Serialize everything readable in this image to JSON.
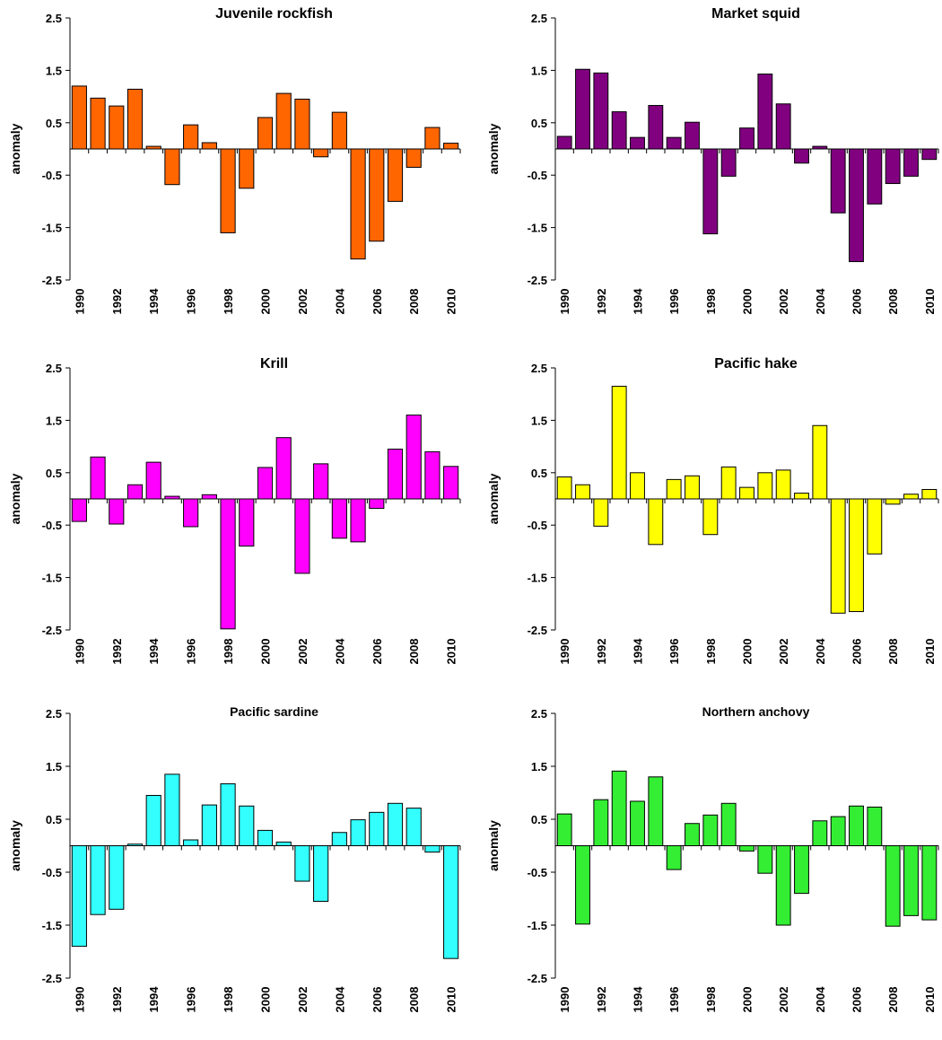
{
  "chart_data": [
    {
      "type": "bar",
      "title": "Juvenile rockfish",
      "ylabel": "anomaly",
      "xlabel": "",
      "ylim": [
        -2.5,
        2.5
      ],
      "yticks": [
        "2.5",
        "1.5",
        "0.5",
        "-0.5",
        "-1.5",
        "-2.5"
      ],
      "categories": [
        "1990",
        "1991",
        "1992",
        "1993",
        "1994",
        "1995",
        "1996",
        "1997",
        "1998",
        "1999",
        "2000",
        "2001",
        "2002",
        "2003",
        "2004",
        "2005",
        "2006",
        "2007",
        "2008",
        "2009",
        "2010"
      ],
      "xtick_labels": [
        "1990",
        "1992",
        "1994",
        "1996",
        "1998",
        "2000",
        "2002",
        "2004",
        "2006",
        "2008",
        "2010"
      ],
      "values": [
        1.2,
        0.97,
        0.82,
        1.14,
        0.05,
        -0.68,
        0.46,
        0.12,
        -1.6,
        -0.75,
        0.6,
        1.06,
        0.95,
        -0.15,
        0.7,
        -2.1,
        -1.76,
        -1.0,
        -0.35,
        0.41,
        0.11
      ],
      "color": "#FF6600"
    },
    {
      "type": "bar",
      "title": "Market squid",
      "ylabel": "anomaly",
      "xlabel": "",
      "ylim": [
        -2.5,
        2.5
      ],
      "yticks": [
        "2.5",
        "1.5",
        "0.5",
        "-0.5",
        "-1.5",
        "-2.5"
      ],
      "categories": [
        "1990",
        "1991",
        "1992",
        "1993",
        "1994",
        "1995",
        "1996",
        "1997",
        "1998",
        "1999",
        "2000",
        "2001",
        "2002",
        "2003",
        "2004",
        "2005",
        "2006",
        "2007",
        "2008",
        "2009",
        "2010"
      ],
      "xtick_labels": [
        "1990",
        "1992",
        "1994",
        "1996",
        "1998",
        "2000",
        "2002",
        "2004",
        "2006",
        "2008",
        "2010"
      ],
      "values": [
        0.24,
        1.52,
        1.45,
        0.71,
        0.22,
        0.83,
        0.22,
        0.51,
        -1.62,
        -0.52,
        0.4,
        1.43,
        0.86,
        -0.27,
        0.05,
        -1.22,
        -2.15,
        -1.05,
        -0.66,
        -0.52,
        -0.2
      ],
      "color": "#800080"
    },
    {
      "type": "bar",
      "title": "Krill",
      "ylabel": "anomaly",
      "xlabel": "",
      "ylim": [
        -2.5,
        2.5
      ],
      "yticks": [
        "2.5",
        "1.5",
        "0.5",
        "-0.5",
        "-1.5",
        "-2.5"
      ],
      "categories": [
        "1990",
        "1991",
        "1992",
        "1993",
        "1994",
        "1995",
        "1996",
        "1997",
        "1998",
        "1999",
        "2000",
        "2001",
        "2002",
        "2003",
        "2004",
        "2005",
        "2006",
        "2007",
        "2008",
        "2009",
        "2010"
      ],
      "xtick_labels": [
        "1990",
        "1992",
        "1994",
        "1996",
        "1998",
        "2000",
        "2002",
        "2004",
        "2006",
        "2008",
        "2010"
      ],
      "values": [
        -0.43,
        0.8,
        -0.48,
        0.27,
        0.7,
        0.05,
        -0.53,
        0.08,
        -2.48,
        -0.9,
        0.6,
        1.17,
        -1.42,
        0.67,
        -0.75,
        -0.82,
        -0.18,
        0.95,
        1.6,
        0.9,
        0.62
      ],
      "color": "#FF00FF"
    },
    {
      "type": "bar",
      "title": "Pacific hake",
      "ylabel": "anomaly",
      "xlabel": "",
      "ylim": [
        -2.5,
        2.5
      ],
      "yticks": [
        "2.5",
        "1.5",
        "0.5",
        "-0.5",
        "-1.5",
        "-2.5"
      ],
      "categories": [
        "1990",
        "1991",
        "1992",
        "1993",
        "1994",
        "1995",
        "1996",
        "1997",
        "1998",
        "1999",
        "2000",
        "2001",
        "2002",
        "2003",
        "2004",
        "2005",
        "2006",
        "2007",
        "2008",
        "2009",
        "2010"
      ],
      "xtick_labels": [
        "1990",
        "1992",
        "1994",
        "1996",
        "1998",
        "2000",
        "2002",
        "2004",
        "2006",
        "2008",
        "2010"
      ],
      "values": [
        0.42,
        0.27,
        -0.52,
        2.15,
        0.5,
        -0.87,
        0.37,
        0.44,
        -0.68,
        0.61,
        0.22,
        0.5,
        0.55,
        0.11,
        1.4,
        -2.18,
        -2.15,
        -1.05,
        -0.1,
        0.09,
        0.18
      ],
      "color": "#FFFF00"
    },
    {
      "type": "bar",
      "title": "Pacific sardine",
      "ylabel": "anomaly",
      "xlabel": "",
      "ylim": [
        -2.5,
        2.5
      ],
      "yticks": [
        "2.5",
        "1.5",
        "0.5",
        "-0.5",
        "-1.5",
        "-2.5"
      ],
      "categories": [
        "1990",
        "1991",
        "1992",
        "1993",
        "1994",
        "1995",
        "1996",
        "1997",
        "1998",
        "1999",
        "2000",
        "2001",
        "2002",
        "2003",
        "2004",
        "2005",
        "2006",
        "2007",
        "2008",
        "2009",
        "2010"
      ],
      "xtick_labels": [
        "1990",
        "1992",
        "1994",
        "1996",
        "1998",
        "2000",
        "2002",
        "2004",
        "2006",
        "2008",
        "2010"
      ],
      "values": [
        -1.9,
        -1.3,
        -1.2,
        0.03,
        0.95,
        1.35,
        0.11,
        0.77,
        1.17,
        0.75,
        0.29,
        0.07,
        -0.67,
        -1.05,
        0.25,
        0.49,
        0.63,
        0.8,
        0.71,
        -0.12,
        -2.13
      ],
      "color": "#33FFFF"
    },
    {
      "type": "bar",
      "title": "Northern anchovy",
      "ylabel": "anomaly",
      "xlabel": "",
      "ylim": [
        -2.5,
        2.5
      ],
      "yticks": [
        "2.5",
        "1.5",
        "0.5",
        "-0.5",
        "-1.5",
        "-2.5"
      ],
      "categories": [
        "1990",
        "1991",
        "1992",
        "1993",
        "1994",
        "1995",
        "1996",
        "1997",
        "1998",
        "1999",
        "2000",
        "2001",
        "2002",
        "2003",
        "2004",
        "2005",
        "2006",
        "2007",
        "2008",
        "2009",
        "2010"
      ],
      "xtick_labels": [
        "1990",
        "1992",
        "1994",
        "1996",
        "1998",
        "2000",
        "2002",
        "2004",
        "2006",
        "2008",
        "2010"
      ],
      "values": [
        0.6,
        -1.48,
        0.87,
        1.41,
        0.84,
        1.3,
        -0.45,
        0.42,
        0.58,
        0.8,
        -0.1,
        -0.52,
        -1.5,
        -0.9,
        0.47,
        0.55,
        0.75,
        0.73,
        -1.52,
        -1.32,
        -1.4
      ],
      "color": "#33EE33"
    }
  ]
}
